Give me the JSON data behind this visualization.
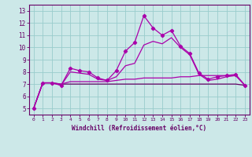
{
  "x": [
    0,
    1,
    2,
    3,
    4,
    5,
    6,
    7,
    8,
    9,
    10,
    11,
    12,
    13,
    14,
    15,
    16,
    17,
    18,
    19,
    20,
    21,
    22,
    23
  ],
  "line1": [
    5.0,
    7.1,
    7.1,
    6.9,
    8.3,
    8.1,
    8.0,
    7.5,
    7.3,
    8.1,
    9.7,
    10.4,
    12.6,
    11.6,
    11.0,
    11.4,
    10.1,
    9.5,
    7.9,
    7.4,
    7.6,
    7.7,
    7.8,
    6.9
  ],
  "line2": [
    5.0,
    7.1,
    7.1,
    6.9,
    8.0,
    7.9,
    7.8,
    7.4,
    7.3,
    7.6,
    8.5,
    8.7,
    10.2,
    10.5,
    10.3,
    10.8,
    10.0,
    9.4,
    7.8,
    7.3,
    7.4,
    7.6,
    7.7,
    6.9
  ],
  "line3": [
    5.0,
    7.1,
    7.1,
    7.0,
    7.2,
    7.2,
    7.2,
    7.2,
    7.2,
    7.3,
    7.4,
    7.4,
    7.5,
    7.5,
    7.5,
    7.5,
    7.6,
    7.6,
    7.7,
    7.7,
    7.7,
    7.7,
    7.7,
    6.9
  ],
  "line4": [
    5.0,
    7.1,
    7.1,
    7.0,
    7.0,
    7.0,
    7.0,
    7.0,
    7.0,
    7.0,
    7.0,
    7.0,
    7.0,
    7.0,
    7.0,
    7.0,
    7.0,
    7.0,
    7.0,
    7.0,
    7.0,
    7.0,
    7.0,
    6.9
  ],
  "line_color": "#aa00aa",
  "line_color_dark": "#660066",
  "bg_color": "#cce8e8",
  "grid_color": "#99cccc",
  "axis_color": "#660066",
  "xlabel": "Windchill (Refroidissement éolien,°C)",
  "ylabel_ticks": [
    5,
    6,
    7,
    8,
    9,
    10,
    11,
    12,
    13
  ],
  "xlim": [
    -0.5,
    23.5
  ],
  "ylim": [
    4.5,
    13.5
  ],
  "marker": "D",
  "marker_size": 2.2,
  "line_width": 0.9
}
